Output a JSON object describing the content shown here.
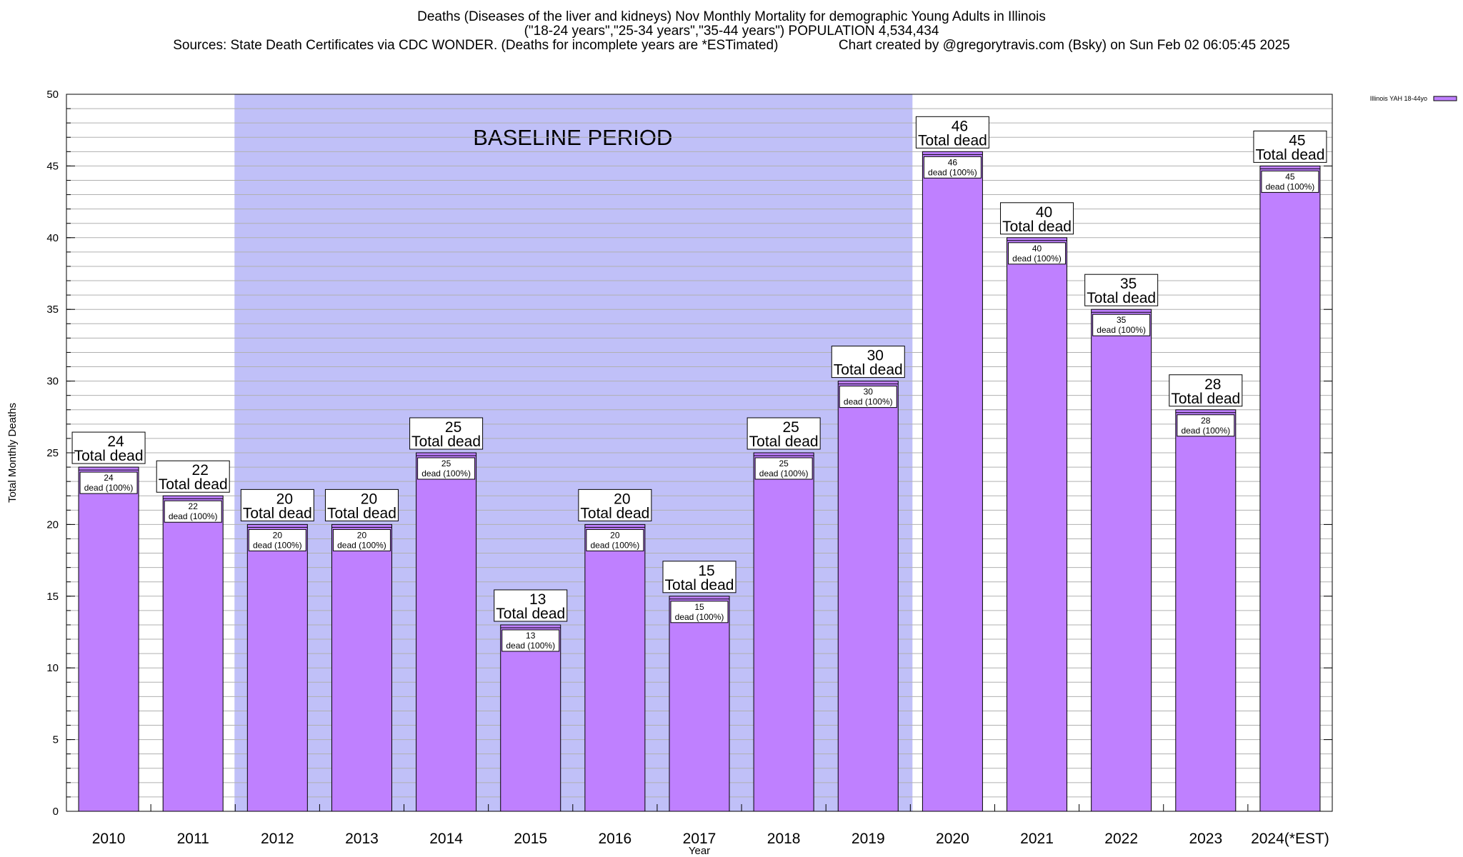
{
  "title_lines": [
    "Deaths (Diseases of the liver and kidneys) Nov Monthly Mortality for demographic Young Adults in Illinois",
    "(\"18-24 years\",\"25-34 years\",\"35-44 years\") POPULATION 4,534,434",
    "Sources: State Death Certificates via CDC WONDER. (Deaths for incomplete years are *ESTimated)                Chart created by @gregorytravis.com (Bsky) on Sun Feb 02 06:05:45 2025"
  ],
  "chart_data": {
    "type": "bar",
    "categories": [
      "2010",
      "2011",
      "2012",
      "2013",
      "2014",
      "2015",
      "2016",
      "2017",
      "2018",
      "2019",
      "2020",
      "2021",
      "2022",
      "2023",
      "2024(*EST)"
    ],
    "series": [
      {
        "name": "Illinois YAH 18-44yo",
        "values": [
          24,
          22,
          20,
          20,
          25,
          13,
          20,
          15,
          25,
          30,
          46,
          40,
          35,
          28,
          45
        ]
      }
    ],
    "xlabel": "Year",
    "ylabel": "Total Monthly Deaths",
    "ylim": [
      0,
      50
    ],
    "yticks": [
      0,
      5,
      10,
      15,
      20,
      25,
      30,
      35,
      40,
      45,
      50
    ],
    "minor_gridlines_per_major": 5,
    "grid": true,
    "legend": "top-right",
    "total_label": "Total dead",
    "inner_label_suffix": "dead (100%)",
    "baseline_annotation": {
      "text": "BASELINE PERIOD",
      "from_category": "2012",
      "to_category": "2019"
    },
    "colors": {
      "bar": "#bf80ff",
      "baseline": "#c0c0f8",
      "grid": "#b0b0b0"
    }
  }
}
